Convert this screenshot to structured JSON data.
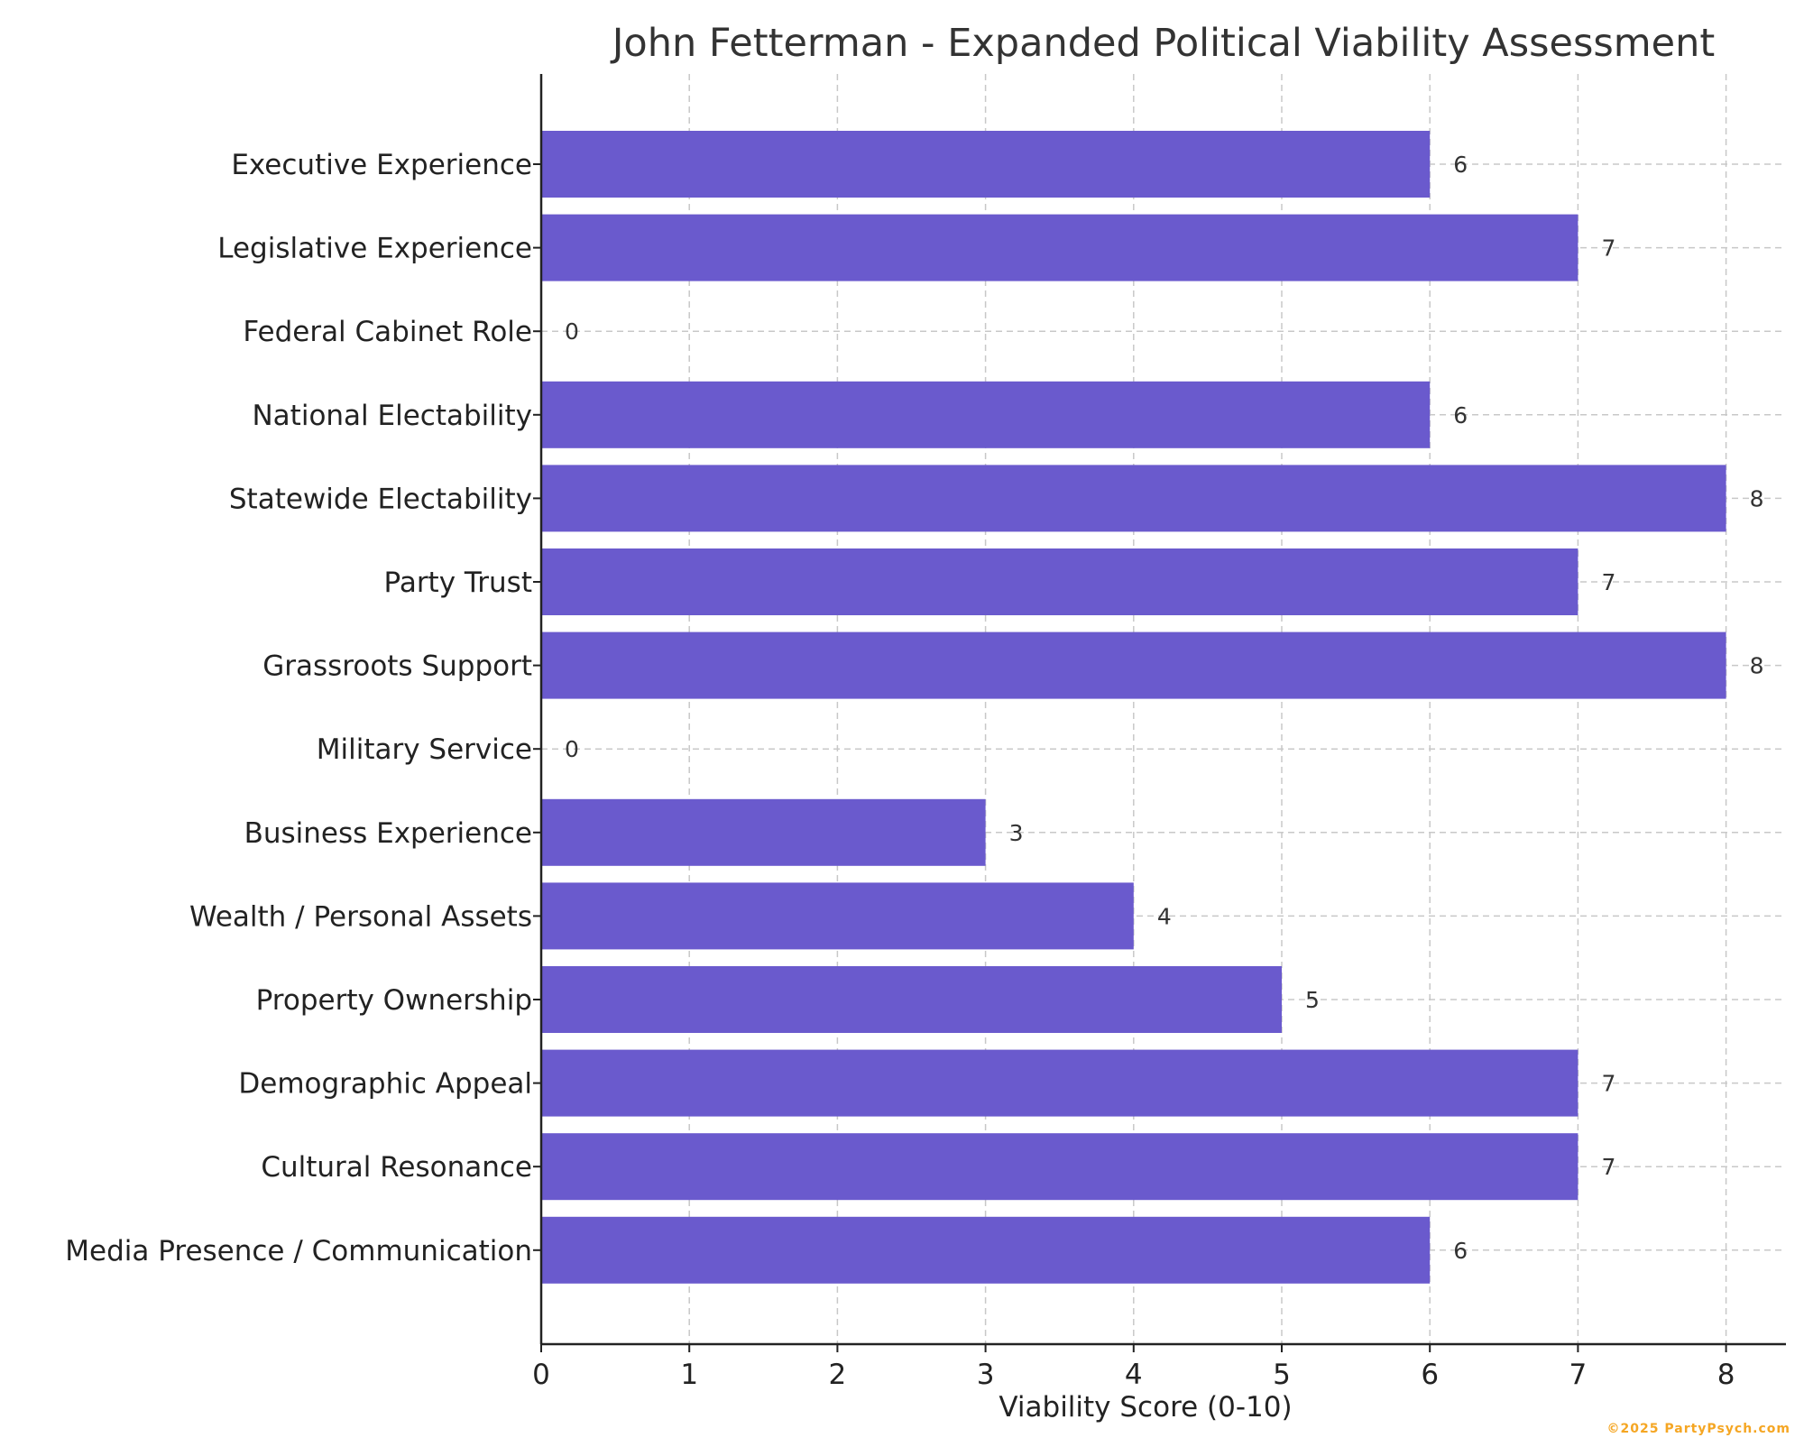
{
  "chart_data": {
    "type": "bar",
    "orientation": "horizontal",
    "title": "John Fetterman - Expanded Political Viability Assessment",
    "xlabel": "Viability Score (0-10)",
    "ylabel": "",
    "xlim": [
      0,
      8.4
    ],
    "xticks": [
      0,
      1,
      2,
      3,
      4,
      5,
      6,
      7,
      8
    ],
    "grid": true,
    "bar_color": "#6a5acd",
    "categories": [
      "Executive Experience",
      "Legislative Experience",
      "Federal Cabinet Role",
      "National Electability",
      "Statewide Electability",
      "Party Trust",
      "Grassroots Support",
      "Military Service",
      "Business Experience",
      "Wealth / Personal Assets",
      "Property Ownership",
      "Demographic Appeal",
      "Cultural Resonance",
      "Media Presence / Communication"
    ],
    "values": [
      6,
      7,
      0,
      6,
      8,
      7,
      8,
      0,
      3,
      4,
      5,
      7,
      7,
      6
    ]
  },
  "footer": {
    "copyright": "©2025 PartyPsych.com"
  }
}
